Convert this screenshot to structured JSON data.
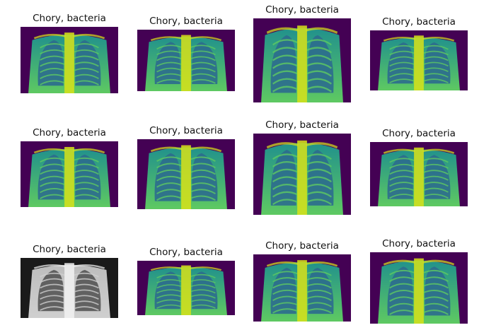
{
  "panels": [
    {
      "title": "Chory, bacteria",
      "colormap": "viridis"
    },
    {
      "title": "Chory, bacteria",
      "colormap": "viridis"
    },
    {
      "title": "Chory, bacteria",
      "colormap": "viridis"
    },
    {
      "title": "Chory, bacteria",
      "colormap": "viridis"
    },
    {
      "title": "Chory, bacteria",
      "colormap": "viridis"
    },
    {
      "title": "Chory, bacteria",
      "colormap": "viridis"
    },
    {
      "title": "Chory, bacteria",
      "colormap": "viridis"
    },
    {
      "title": "Chory, bacteria",
      "colormap": "viridis"
    },
    {
      "title": "Chory, bacteria",
      "colormap": "gray"
    },
    {
      "title": "Chory, bacteria",
      "colormap": "viridis"
    },
    {
      "title": "Chory, bacteria",
      "colormap": "viridis"
    },
    {
      "title": "Chory, bacteria",
      "colormap": "viridis"
    }
  ],
  "colors": {
    "viridis_dark": "#440154",
    "viridis_blue": "#2c6b8e",
    "viridis_teal": "#21918c",
    "viridis_green": "#5ec962",
    "viridis_yellow": "#d8e219",
    "gray_dark": "#1a1a1a",
    "gray_light": "#f2f2f2"
  }
}
